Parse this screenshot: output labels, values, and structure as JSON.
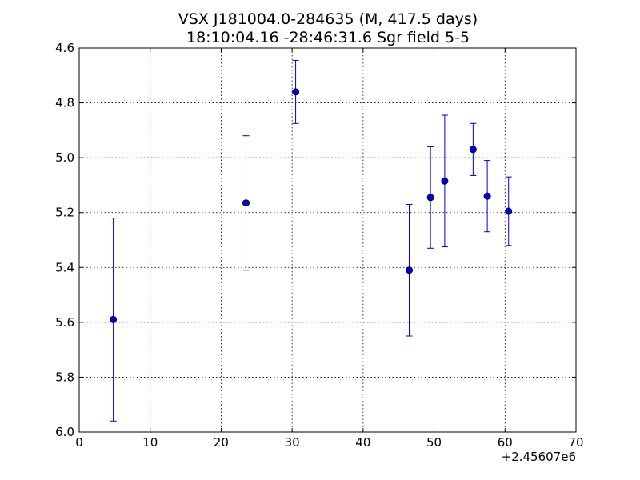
{
  "chart_data": {
    "type": "scatter",
    "title": "VSX J181004.0-284635 (M, 417.5 days)",
    "subtitle": "18:10:04.16 -28:46:31.6 Sgr field 5-5",
    "xlabel": "",
    "ylabel": "",
    "x_offset_label": "+2.45607e6",
    "xlim": [
      0,
      70
    ],
    "ylim": [
      4.6,
      6.0
    ],
    "y_inverted": true,
    "grid": true,
    "x_ticks": [
      "0",
      "10",
      "20",
      "30",
      "40",
      "50",
      "60",
      "70"
    ],
    "y_ticks": [
      "4.6",
      "4.8",
      "5.0",
      "5.2",
      "5.4",
      "5.6",
      "5.8",
      "6.0"
    ],
    "color": "#0000cc",
    "points": [
      {
        "x": 4.8,
        "y": 5.59,
        "err": 0.37
      },
      {
        "x": 23.5,
        "y": 5.165,
        "err": 0.245
      },
      {
        "x": 30.5,
        "y": 4.76,
        "err": 0.115
      },
      {
        "x": 46.5,
        "y": 5.41,
        "err": 0.24
      },
      {
        "x": 49.5,
        "y": 5.145,
        "err": 0.185
      },
      {
        "x": 51.5,
        "y": 5.085,
        "err": 0.24
      },
      {
        "x": 55.5,
        "y": 4.97,
        "err": 0.095
      },
      {
        "x": 57.5,
        "y": 5.14,
        "err": 0.13
      },
      {
        "x": 60.5,
        "y": 5.195,
        "err": 0.125
      }
    ]
  }
}
